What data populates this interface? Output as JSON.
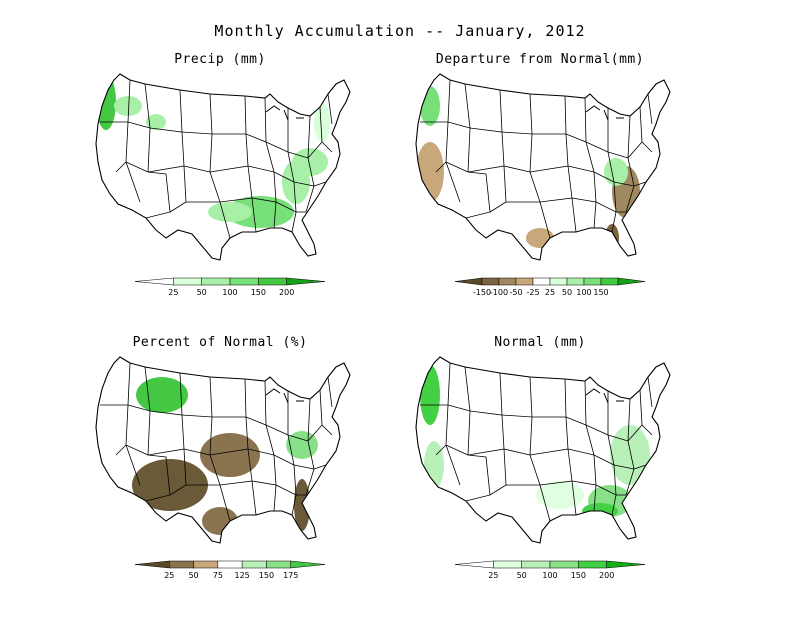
{
  "title": "Monthly Accumulation -- January, 2012",
  "panels": [
    {
      "id": "precip",
      "title": "Precip (mm)",
      "legend": {
        "colors": [
          "#ffffff",
          "#d8ffd8",
          "#a8f0a8",
          "#78e078",
          "#44c844",
          "#18a018"
        ],
        "ticks": [
          "25",
          "50",
          "100",
          "150",
          "200"
        ]
      },
      "regions": [
        {
          "name": "pacific-northwest",
          "color": "#44c844"
        },
        {
          "name": "northern-rockies",
          "color": "#a8f0a8"
        },
        {
          "name": "lower-mississippi",
          "color": "#78e078"
        },
        {
          "name": "ohio-valley",
          "color": "#a8f0a8"
        },
        {
          "name": "northeast",
          "color": "#d8ffd8"
        },
        {
          "name": "texas-east",
          "color": "#a8f0a8"
        }
      ]
    },
    {
      "id": "departure",
      "title": "Departure from Normal(mm)",
      "legend": {
        "colors": [
          "#5a4a2a",
          "#7a6440",
          "#a08860",
          "#c8a87a",
          "#ffffff",
          "#d8ffd8",
          "#a8f0a8",
          "#78e078",
          "#44c844",
          "#18a018"
        ],
        "ticks": [
          "-150",
          "-100",
          "-50",
          "-25",
          "25",
          "50",
          "100",
          "150"
        ]
      },
      "regions": [
        {
          "name": "california",
          "color": "#c8a87a"
        },
        {
          "name": "southeast",
          "color": "#a08860"
        },
        {
          "name": "florida",
          "color": "#7a6440"
        },
        {
          "name": "pacific-northwest",
          "color": "#78e078"
        },
        {
          "name": "ohio-valley",
          "color": "#a8f0a8"
        },
        {
          "name": "texas-south",
          "color": "#c8a87a"
        }
      ]
    },
    {
      "id": "percent",
      "title": "Percent of Normal (%)",
      "legend": {
        "colors": [
          "#5a4a2a",
          "#8a7450",
          "#c8a87a",
          "#ffffff",
          "#b8f0b8",
          "#88e088",
          "#44c844"
        ],
        "ticks": [
          "25",
          "50",
          "75",
          "125",
          "150",
          "175"
        ]
      },
      "regions": [
        {
          "name": "southwest",
          "color": "#6a5a38"
        },
        {
          "name": "plains",
          "color": "#8a7450"
        },
        {
          "name": "northern-rockies",
          "color": "#44c844"
        },
        {
          "name": "florida",
          "color": "#6a5a38"
        },
        {
          "name": "great-lakes",
          "color": "#88e088"
        },
        {
          "name": "texas-south",
          "color": "#8a7450"
        }
      ]
    },
    {
      "id": "normal",
      "title": "Normal (mm)",
      "legend": {
        "colors": [
          "#ffffff",
          "#e0ffe0",
          "#b8f0b8",
          "#88e088",
          "#44d044",
          "#10b010"
        ],
        "ticks": [
          "25",
          "50",
          "100",
          "150",
          "200"
        ]
      },
      "regions": [
        {
          "name": "pacific-northwest",
          "color": "#44d044"
        },
        {
          "name": "southeast",
          "color": "#88e088"
        },
        {
          "name": "east",
          "color": "#b8f0b8"
        },
        {
          "name": "gulf-coast",
          "color": "#44d044"
        },
        {
          "name": "california",
          "color": "#b8f0b8"
        },
        {
          "name": "texas-east",
          "color": "#e0ffe0"
        }
      ]
    }
  ]
}
